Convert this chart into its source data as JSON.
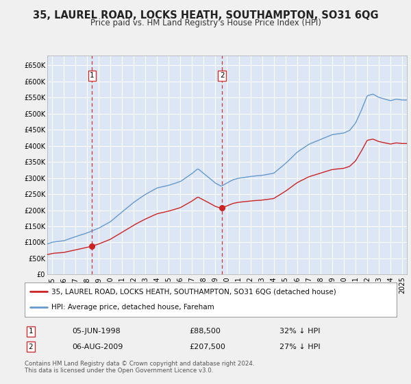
{
  "title": "35, LAUREL ROAD, LOCKS HEATH, SOUTHAMPTON, SO31 6QG",
  "subtitle": "Price paid vs. HM Land Registry's House Price Index (HPI)",
  "bg_color": "#f0f0f0",
  "plot_bg_color": "#dce6f5",
  "grid_color": "#ffffff",
  "hpi_color": "#6699cc",
  "price_color": "#cc2222",
  "dashed_color": "#cc3333",
  "sale1_date_x": 1998.44,
  "sale1_price": 88500,
  "sale1_label": "1",
  "sale2_date_x": 2009.58,
  "sale2_price": 207500,
  "sale2_label": "2",
  "legend_line1": "35, LAUREL ROAD, LOCKS HEATH, SOUTHAMPTON, SO31 6QG (detached house)",
  "legend_line2": "HPI: Average price, detached house, Fareham",
  "table_row1": [
    "1",
    "05-JUN-1998",
    "£88,500",
    "32% ↓ HPI"
  ],
  "table_row2": [
    "2",
    "06-AUG-2009",
    "£207,500",
    "27% ↓ HPI"
  ],
  "footnote1": "Contains HM Land Registry data © Crown copyright and database right 2024.",
  "footnote2": "This data is licensed under the Open Government Licence v3.0.",
  "ylim": [
    0,
    680000
  ],
  "xlim_start": 1994.6,
  "xlim_end": 2025.4,
  "yticks": [
    0,
    50000,
    100000,
    150000,
    200000,
    250000,
    300000,
    350000,
    400000,
    450000,
    500000,
    550000,
    600000,
    650000
  ],
  "ytick_labels": [
    "£0",
    "£50K",
    "£100K",
    "£150K",
    "£200K",
    "£250K",
    "£300K",
    "£350K",
    "£400K",
    "£450K",
    "£500K",
    "£550K",
    "£600K",
    "£650K"
  ],
  "xticks": [
    1995,
    1996,
    1997,
    1998,
    1999,
    2000,
    2001,
    2002,
    2003,
    2004,
    2005,
    2006,
    2007,
    2008,
    2009,
    2010,
    2011,
    2012,
    2013,
    2014,
    2015,
    2016,
    2017,
    2018,
    2019,
    2020,
    2021,
    2022,
    2023,
    2024,
    2025
  ],
  "hpi_key_years": [
    1994.6,
    1995,
    1996,
    1997,
    1998,
    1999,
    2000,
    2001,
    2002,
    2003,
    2004,
    2005,
    2006,
    2007,
    2007.5,
    2008,
    2008.5,
    2009,
    2009.5,
    2010,
    2010.5,
    2011,
    2012,
    2013,
    2014,
    2015,
    2016,
    2017,
    2018,
    2019,
    2020,
    2020.5,
    2021,
    2021.5,
    2022,
    2022.5,
    2023,
    2023.5,
    2024,
    2024.5,
    2025
  ],
  "hpi_key_vals": [
    95000,
    100000,
    105000,
    118000,
    130000,
    145000,
    165000,
    195000,
    225000,
    250000,
    270000,
    278000,
    290000,
    315000,
    330000,
    315000,
    300000,
    285000,
    275000,
    285000,
    295000,
    300000,
    305000,
    308000,
    315000,
    345000,
    380000,
    405000,
    420000,
    435000,
    440000,
    448000,
    470000,
    510000,
    555000,
    560000,
    550000,
    545000,
    540000,
    545000,
    542000
  ]
}
